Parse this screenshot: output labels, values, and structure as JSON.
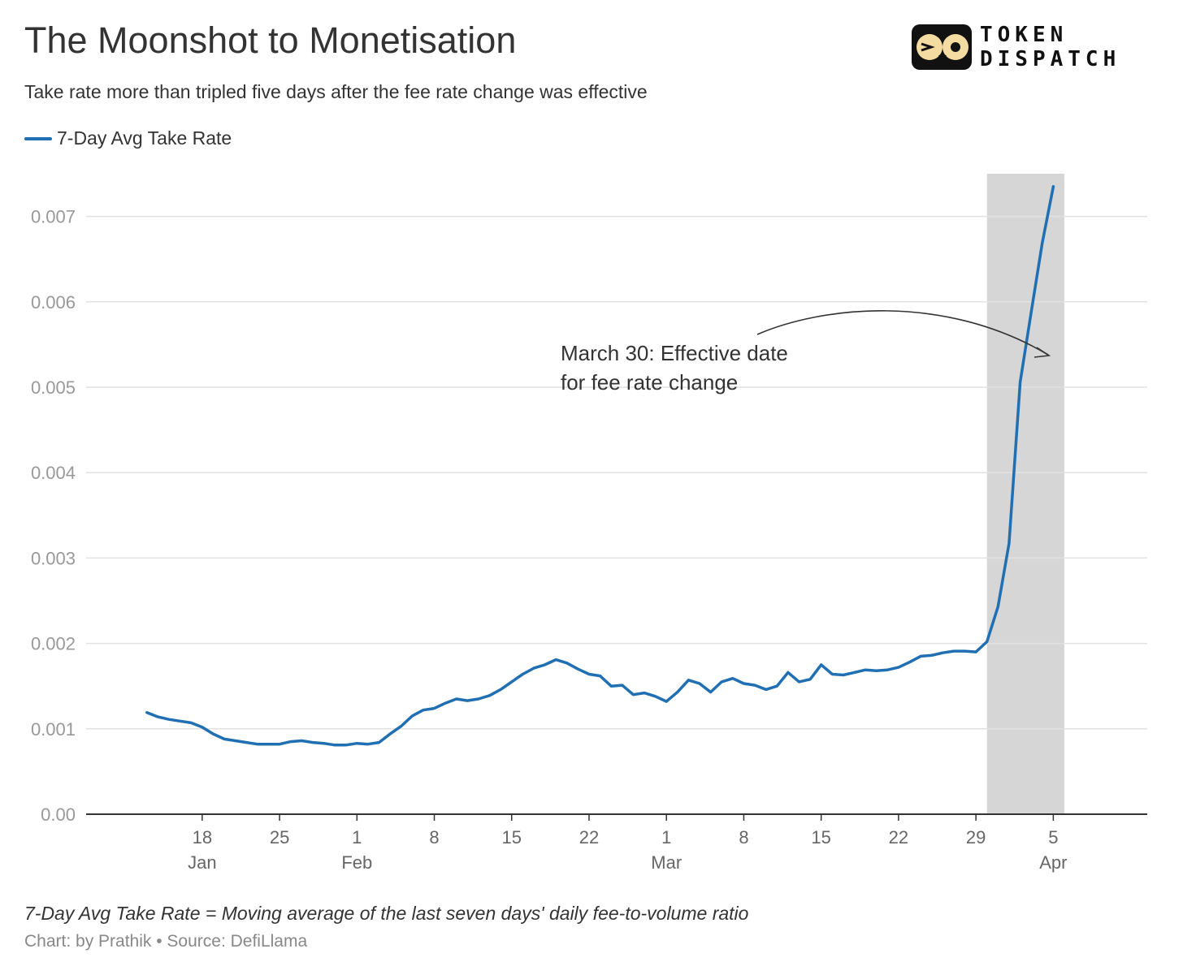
{
  "header": {
    "title": "The Moonshot to Monetisation",
    "subtitle": "Take rate more than tripled five days after the fee rate change was effective"
  },
  "logo": {
    "line1": "TOKEN",
    "line2": "DISPATCH"
  },
  "legend": {
    "label": "7-Day Avg Take Rate",
    "color": "#1f6fb2"
  },
  "annotation": {
    "line1": "March 30: Effective date",
    "line2": "for fee rate change"
  },
  "footer": {
    "footnote": "7-Day Avg Take Rate = Moving average of the last seven days' daily fee-to-volume ratio",
    "credit": "Chart: by Prathik • Source: DefiLlama"
  },
  "chart_data": {
    "type": "line",
    "title": "The Moonshot to Monetisation",
    "xlabel": "",
    "ylabel": "",
    "ylim": [
      0,
      0.0075
    ],
    "x_range_days": [
      -5.5,
      90.5
    ],
    "x_start_label": "Jan 13",
    "y_ticks": [
      {
        "value": 0,
        "label": "0.00"
      },
      {
        "value": 0.001,
        "label": "0.001"
      },
      {
        "value": 0.002,
        "label": "0.002"
      },
      {
        "value": 0.003,
        "label": "0.003"
      },
      {
        "value": 0.004,
        "label": "0.004"
      },
      {
        "value": 0.005,
        "label": "0.005"
      },
      {
        "value": 0.006,
        "label": "0.006"
      },
      {
        "value": 0.007,
        "label": "0.007"
      }
    ],
    "x_ticks": [
      {
        "day": 5,
        "label": "18",
        "sublabel": "Jan"
      },
      {
        "day": 12,
        "label": "25",
        "sublabel": ""
      },
      {
        "day": 19,
        "label": "1",
        "sublabel": "Feb"
      },
      {
        "day": 26,
        "label": "8",
        "sublabel": ""
      },
      {
        "day": 33,
        "label": "15",
        "sublabel": ""
      },
      {
        "day": 40,
        "label": "22",
        "sublabel": ""
      },
      {
        "day": 47,
        "label": "1",
        "sublabel": "Mar"
      },
      {
        "day": 54,
        "label": "8",
        "sublabel": ""
      },
      {
        "day": 61,
        "label": "15",
        "sublabel": ""
      },
      {
        "day": 68,
        "label": "22",
        "sublabel": ""
      },
      {
        "day": 75,
        "label": "29",
        "sublabel": ""
      },
      {
        "day": 82,
        "label": "5",
        "sublabel": "Apr"
      }
    ],
    "highlight_range_days": [
      76,
      83
    ],
    "series": [
      {
        "name": "7-Day Avg Take Rate",
        "color": "#1f6fb2",
        "x": [
          0,
          1,
          2,
          3,
          4,
          5,
          6,
          7,
          8,
          9,
          10,
          11,
          12,
          13,
          14,
          15,
          16,
          17,
          18,
          19,
          20,
          21,
          22,
          23,
          24,
          25,
          26,
          27,
          28,
          29,
          30,
          31,
          32,
          33,
          34,
          35,
          36,
          37,
          38,
          39,
          40,
          41,
          42,
          43,
          44,
          45,
          46,
          47,
          48,
          49,
          50,
          51,
          52,
          53,
          54,
          55,
          56,
          57,
          58,
          59,
          60,
          61,
          62,
          63,
          64,
          65,
          66,
          67,
          68,
          69,
          70,
          71,
          72,
          73,
          74,
          75,
          76,
          77,
          78,
          79,
          80,
          81,
          82
        ],
        "values": [
          0.00119,
          0.00114,
          0.00111,
          0.00109,
          0.00107,
          0.00102,
          0.00094,
          0.00088,
          0.00086,
          0.00084,
          0.00082,
          0.00082,
          0.00082,
          0.00085,
          0.00086,
          0.00084,
          0.00083,
          0.00081,
          0.00081,
          0.00083,
          0.00082,
          0.00084,
          0.00094,
          0.00103,
          0.00115,
          0.00122,
          0.00124,
          0.0013,
          0.00135,
          0.00133,
          0.00135,
          0.00139,
          0.00146,
          0.00155,
          0.00164,
          0.00171,
          0.00175,
          0.00181,
          0.00177,
          0.0017,
          0.00164,
          0.00162,
          0.0015,
          0.00151,
          0.0014,
          0.00142,
          0.00138,
          0.00132,
          0.00143,
          0.00157,
          0.00153,
          0.00143,
          0.00155,
          0.00159,
          0.00153,
          0.00151,
          0.00146,
          0.0015,
          0.00166,
          0.00155,
          0.00158,
          0.00175,
          0.00164,
          0.00163,
          0.00166,
          0.00169,
          0.00168,
          0.00169,
          0.00172,
          0.00178,
          0.00185,
          0.00186,
          0.00189,
          0.00191,
          0.00191,
          0.0019,
          0.00202,
          0.00243,
          0.00317,
          0.00506,
          0.00588,
          0.00669,
          0.00735
        ]
      }
    ]
  }
}
